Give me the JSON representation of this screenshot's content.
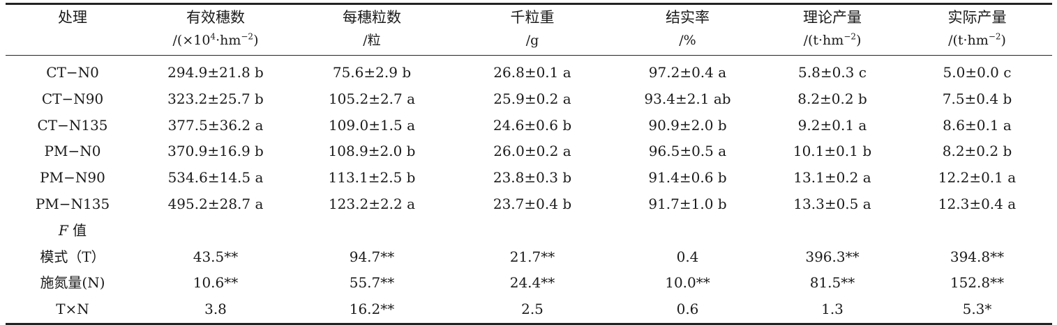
{
  "table": {
    "headers": [
      {
        "line1": "处理",
        "line2": ""
      },
      {
        "line1": "有效穗数",
        "line2_pre": "/(×10",
        "line2_sup": "4",
        "line2_mid": "·hm",
        "line2_sup2": "−2",
        "line2_post": ")"
      },
      {
        "line1": "每穗粒数",
        "line2": "/粒"
      },
      {
        "line1": "千粒重",
        "line2": "/g"
      },
      {
        "line1": "结实率",
        "line2": "/%"
      },
      {
        "line1": "理论产量",
        "line2_pre": "/(t·hm",
        "line2_sup": "−2",
        "line2_post": ")"
      },
      {
        "line1": "实际产量",
        "line2_pre": "/(t·hm",
        "line2_sup": "−2",
        "line2_post": ")"
      }
    ],
    "rows": [
      [
        "CT−N0",
        "294.9±21.8 b",
        "75.6±2.9 b",
        "26.8±0.1 a",
        "97.2±0.4 a",
        "5.8±0.3 c",
        "5.0±0.0 c"
      ],
      [
        "CT−N90",
        "323.2±25.7 b",
        "105.2±2.7 a",
        "25.9±0.2 a",
        "93.4±2.1 ab",
        "8.2±0.2 b",
        "7.5±0.4 b"
      ],
      [
        "CT−N135",
        "377.5±36.2 a",
        "109.0±1.5 a",
        "24.6±0.6 b",
        "90.9±2.0 b",
        "9.2±0.1 a",
        "8.6±0.1 a"
      ],
      [
        "PM−N0",
        "370.9±16.9 b",
        "108.9±2.0 b",
        "26.0±0.2 a",
        "96.5±0.5 a",
        "10.1±0.1 b",
        "8.2±0.2 b"
      ],
      [
        "PM−N90",
        "534.6±14.5 a",
        "113.1±2.5 b",
        "23.8±0.3 b",
        "91.4±0.6 b",
        "13.1±0.2 a",
        "12.2±0.1 a"
      ],
      [
        "PM−N135",
        "495.2±28.7 a",
        "123.2±2.2 a",
        "23.7±0.4 b",
        "91.7±1.0 b",
        "13.3±0.5 a",
        "12.3±0.4 a"
      ]
    ],
    "f_label_italic": "F",
    "f_label_rest": " 值",
    "f_rows": [
      [
        "模式（T）",
        "43.5**",
        "94.7**",
        "21.7**",
        "0.4",
        "396.3**",
        "394.8**"
      ],
      [
        "施氮量(N)",
        "10.6**",
        "55.7**",
        "24.4**",
        "10.0**",
        "81.5**",
        "152.8**"
      ],
      [
        "T×N",
        "3.8",
        "16.2**",
        "2.5",
        "0.6",
        "1.3",
        "5.3*"
      ]
    ]
  }
}
